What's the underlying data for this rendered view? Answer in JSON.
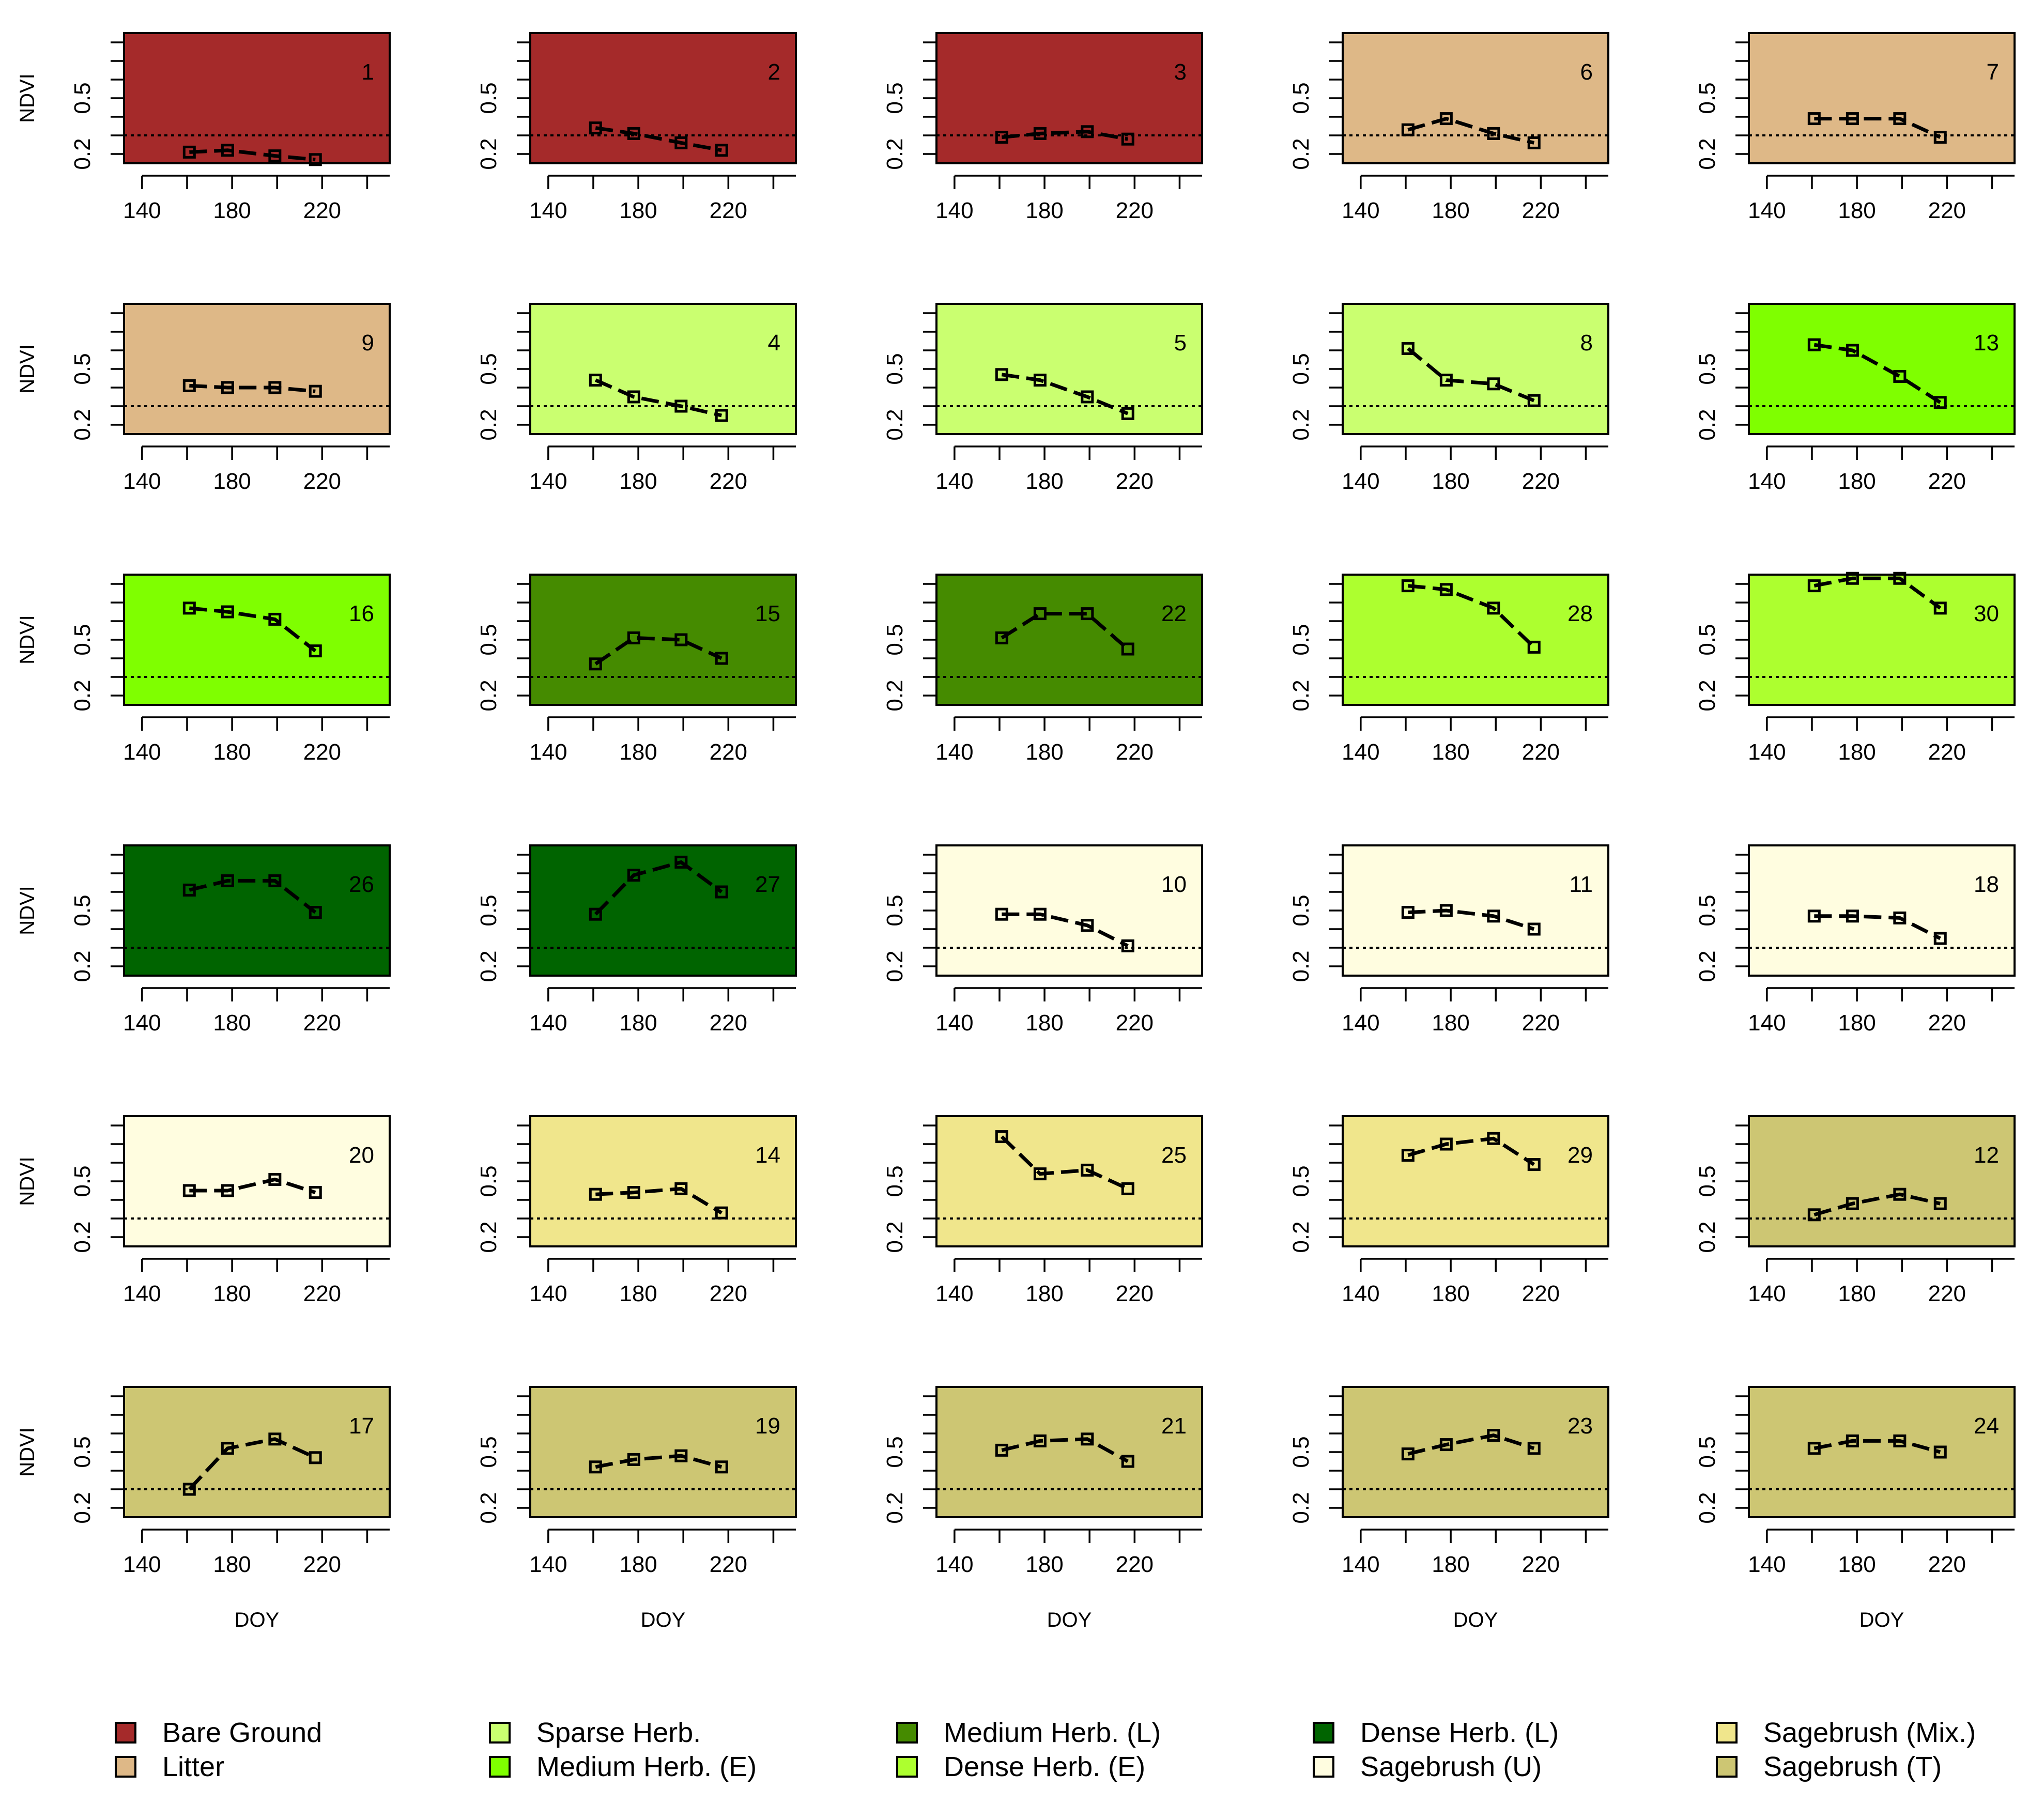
{
  "chart_data": {
    "type": "line",
    "layout": "6 rows x 5 small-multiple panels",
    "xlabel": "DOY",
    "ylabel": "NDVI",
    "xlim": [
      132,
      250
    ],
    "ylim": [
      0.15,
      0.85
    ],
    "xticks": [
      140,
      180,
      220
    ],
    "yticks": [
      0.2,
      0.5
    ],
    "yticks_minor": [
      0.2,
      0.3,
      0.4,
      0.5,
      0.6,
      0.7,
      0.8
    ],
    "reference_line_y": 0.3,
    "x": [
      161,
      178,
      199,
      217
    ],
    "panels": [
      {
        "id": "1",
        "class": "Bare Ground",
        "values": [
          0.21,
          0.22,
          0.19,
          0.17
        ]
      },
      {
        "id": "2",
        "class": "Bare Ground",
        "values": [
          0.34,
          0.31,
          0.26,
          0.22
        ]
      },
      {
        "id": "3",
        "class": "Bare Ground",
        "values": [
          0.29,
          0.31,
          0.32,
          0.28
        ]
      },
      {
        "id": "6",
        "class": "Litter",
        "values": [
          0.33,
          0.39,
          0.31,
          0.26
        ]
      },
      {
        "id": "7",
        "class": "Litter",
        "values": [
          0.39,
          0.39,
          0.39,
          0.29
        ]
      },
      {
        "id": "9",
        "class": "Litter",
        "values": [
          0.41,
          0.4,
          0.4,
          0.38
        ]
      },
      {
        "id": "4",
        "class": "Sparse Herb.",
        "values": [
          0.44,
          0.35,
          0.3,
          0.25
        ]
      },
      {
        "id": "5",
        "class": "Sparse Herb.",
        "values": [
          0.47,
          0.44,
          0.35,
          0.26
        ]
      },
      {
        "id": "8",
        "class": "Sparse Herb.",
        "values": [
          0.61,
          0.44,
          0.42,
          0.33
        ]
      },
      {
        "id": "13",
        "class": "Medium Herb. (E)",
        "values": [
          0.63,
          0.6,
          0.46,
          0.32
        ]
      },
      {
        "id": "16",
        "class": "Medium Herb. (E)",
        "values": [
          0.67,
          0.65,
          0.61,
          0.44
        ]
      },
      {
        "id": "15",
        "class": "Medium Herb. (L)",
        "values": [
          0.37,
          0.51,
          0.5,
          0.4
        ]
      },
      {
        "id": "22",
        "class": "Medium Herb. (L)",
        "values": [
          0.51,
          0.64,
          0.64,
          0.45
        ]
      },
      {
        "id": "28",
        "class": "Dense Herb. (E)",
        "values": [
          0.79,
          0.77,
          0.67,
          0.46
        ]
      },
      {
        "id": "30",
        "class": "Dense Herb. (E)",
        "values": [
          0.79,
          0.83,
          0.83,
          0.67
        ]
      },
      {
        "id": "26",
        "class": "Dense Herb. (L)",
        "values": [
          0.61,
          0.66,
          0.66,
          0.49
        ]
      },
      {
        "id": "27",
        "class": "Dense Herb. (L)",
        "values": [
          0.48,
          0.69,
          0.76,
          0.6
        ]
      },
      {
        "id": "10",
        "class": "Sagebrush (U)",
        "values": [
          0.48,
          0.48,
          0.42,
          0.31
        ]
      },
      {
        "id": "11",
        "class": "Sagebrush (U)",
        "values": [
          0.49,
          0.5,
          0.47,
          0.4
        ]
      },
      {
        "id": "18",
        "class": "Sagebrush (U)",
        "values": [
          0.47,
          0.47,
          0.46,
          0.35
        ]
      },
      {
        "id": "20",
        "class": "Sagebrush (U)",
        "values": [
          0.45,
          0.45,
          0.51,
          0.44
        ]
      },
      {
        "id": "14",
        "class": "Sagebrush (Mix.)",
        "values": [
          0.43,
          0.44,
          0.46,
          0.33
        ]
      },
      {
        "id": "25",
        "class": "Sagebrush (Mix.)",
        "values": [
          0.74,
          0.54,
          0.56,
          0.46
        ]
      },
      {
        "id": "29",
        "class": "Sagebrush (Mix.)",
        "values": [
          0.64,
          0.7,
          0.73,
          0.59
        ]
      },
      {
        "id": "12",
        "class": "Sagebrush (T)",
        "values": [
          0.32,
          0.38,
          0.43,
          0.38
        ]
      },
      {
        "id": "17",
        "class": "Sagebrush (T)",
        "values": [
          0.3,
          0.52,
          0.57,
          0.47
        ]
      },
      {
        "id": "19",
        "class": "Sagebrush (T)",
        "values": [
          0.42,
          0.46,
          0.48,
          0.42
        ]
      },
      {
        "id": "21",
        "class": "Sagebrush (T)",
        "values": [
          0.51,
          0.56,
          0.57,
          0.45
        ]
      },
      {
        "id": "23",
        "class": "Sagebrush (T)",
        "values": [
          0.49,
          0.54,
          0.59,
          0.52
        ]
      },
      {
        "id": "24",
        "class": "Sagebrush (T)",
        "values": [
          0.52,
          0.56,
          0.56,
          0.5
        ]
      }
    ],
    "legend": [
      {
        "label": "Bare Ground",
        "color": "#a52a2a"
      },
      {
        "label": "Litter",
        "color": "#deb887"
      },
      {
        "label": "Sparse Herb.",
        "color": "#caff70"
      },
      {
        "label": "Medium Herb. (E)",
        "color": "#7fff00"
      },
      {
        "label": "Medium Herb. (L)",
        "color": "#458b00"
      },
      {
        "label": "Dense Herb. (E)",
        "color": "#adff2f"
      },
      {
        "label": "Dense Herb. (L)",
        "color": "#006400"
      },
      {
        "label": "Sagebrush (U)",
        "color": "#fffde0"
      },
      {
        "label": "Sagebrush (Mix.)",
        "color": "#f0e68c"
      },
      {
        "label": "Sagebrush (T)",
        "color": "#cdc673"
      }
    ]
  }
}
